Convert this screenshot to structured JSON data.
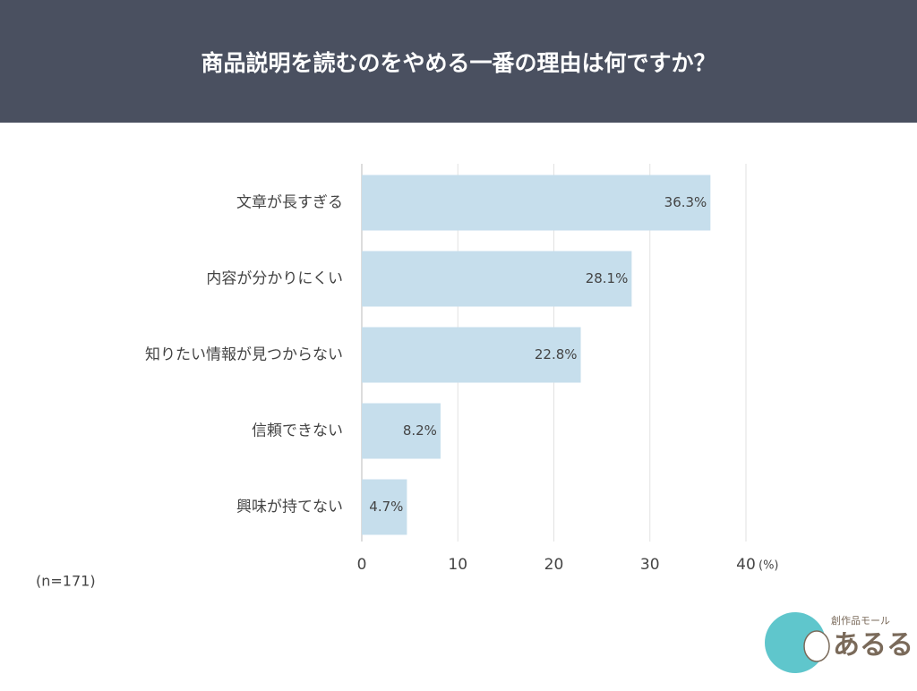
{
  "chart_data": {
    "type": "bar",
    "orientation": "horizontal",
    "title": "商品説明を読むのをやめる一番の理由は何ですか？",
    "categories": [
      "文章が長すぎる",
      "内容が分かりにくい",
      "知りたい情報が見つからない",
      "信頼できない",
      "興味が持てない"
    ],
    "values": [
      36.3,
      28.1,
      22.8,
      8.2,
      4.7
    ],
    "value_labels": [
      "36.3%",
      "28.1%",
      "22.8%",
      "8.2%",
      "4.7%"
    ],
    "color": "#c6deec",
    "xlim": [
      0,
      40
    ],
    "xticks": [
      0,
      10,
      20,
      30,
      40
    ],
    "grid": true,
    "x_unit": "(%)",
    "note": "(n=171)"
  },
  "logo": {
    "tagline": "創作品モール",
    "name": "あるる"
  }
}
